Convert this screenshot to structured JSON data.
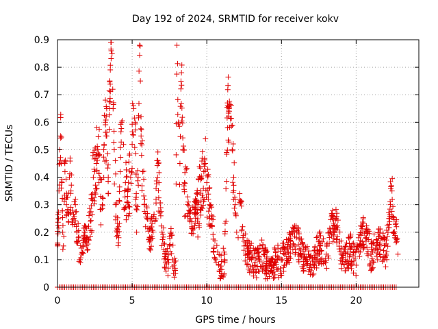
{
  "chart_data": {
    "type": "scatter",
    "title": "Day 192 of 2024, SRMTID for receiver kokv",
    "xlabel": "GPS time / hours",
    "ylabel": "SRMTID / TECUs",
    "xlim": [
      0,
      24.2
    ],
    "ylim": [
      0,
      0.9
    ],
    "xticks": [
      0,
      5,
      10,
      15,
      20
    ],
    "xtick_labels": [
      "0",
      "5",
      "10",
      "15",
      "20"
    ],
    "yticks": [
      0,
      0.1,
      0.2,
      0.3,
      0.4,
      0.5,
      0.6,
      0.7,
      0.8,
      0.9
    ],
    "ytick_labels": [
      "0",
      "0.1",
      "0.2",
      "0.3",
      "0.4",
      "0.5",
      "0.6",
      "0.7",
      "0.8",
      "0.9"
    ],
    "grid": true,
    "marker": "+",
    "color": "#e00000",
    "series": [
      {
        "name": "SRMTID",
        "points": [
          [
            0.0,
            0.15
          ],
          [
            0.1,
            0.35
          ],
          [
            0.15,
            0.5
          ],
          [
            0.2,
            0.55
          ],
          [
            0.25,
            0.45
          ],
          [
            0.3,
            0.38
          ],
          [
            0.35,
            0.2
          ],
          [
            0.4,
            0.15
          ],
          [
            0.45,
            0.32
          ],
          [
            0.5,
            0.42
          ],
          [
            0.6,
            0.3
          ],
          [
            0.7,
            0.27
          ],
          [
            0.8,
            0.4
          ],
          [
            0.9,
            0.35
          ],
          [
            1.0,
            0.28
          ],
          [
            1.1,
            0.25
          ],
          [
            1.2,
            0.3
          ],
          [
            1.3,
            0.2
          ],
          [
            1.4,
            0.18
          ],
          [
            1.5,
            0.1
          ],
          [
            1.6,
            0.12
          ],
          [
            1.7,
            0.15
          ],
          [
            1.8,
            0.2
          ],
          [
            1.9,
            0.22
          ],
          [
            2.0,
            0.18
          ],
          [
            2.2,
            0.24
          ],
          [
            2.4,
            0.4
          ],
          [
            2.5,
            0.42
          ],
          [
            2.6,
            0.45
          ],
          [
            2.7,
            0.5
          ],
          [
            2.8,
            0.48
          ],
          [
            2.9,
            0.33
          ],
          [
            3.0,
            0.3
          ],
          [
            3.1,
            0.5
          ],
          [
            3.2,
            0.6
          ],
          [
            3.3,
            0.55
          ],
          [
            3.4,
            0.4
          ],
          [
            3.5,
            0.75
          ],
          [
            3.6,
            0.86
          ],
          [
            3.7,
            0.72
          ],
          [
            3.8,
            0.5
          ],
          [
            3.9,
            0.3
          ],
          [
            4.0,
            0.2
          ],
          [
            4.1,
            0.18
          ],
          [
            4.2,
            0.42
          ],
          [
            4.3,
            0.6
          ],
          [
            4.5,
            0.35
          ],
          [
            4.7,
            0.33
          ],
          [
            4.9,
            0.4
          ],
          [
            5.0,
            0.52
          ],
          [
            5.1,
            0.65
          ],
          [
            5.2,
            0.6
          ],
          [
            5.3,
            0.2
          ],
          [
            5.4,
            0.4
          ],
          [
            5.5,
            0.88
          ],
          [
            5.55,
            0.75
          ],
          [
            5.6,
            0.55
          ],
          [
            5.7,
            0.42
          ],
          [
            5.8,
            0.3
          ],
          [
            5.9,
            0.22
          ],
          [
            6.0,
            0.25
          ],
          [
            6.2,
            0.18
          ],
          [
            6.4,
            0.25
          ],
          [
            6.6,
            0.32
          ],
          [
            6.7,
            0.4
          ],
          [
            6.8,
            0.38
          ],
          [
            7.0,
            0.2
          ],
          [
            7.2,
            0.12
          ],
          [
            7.4,
            0.1
          ],
          [
            7.5,
            0.15
          ],
          [
            7.6,
            0.2
          ],
          [
            7.7,
            0.1
          ],
          [
            7.8,
            0.08
          ],
          [
            7.9,
            0.05
          ],
          [
            8.0,
            0.88
          ],
          [
            8.1,
            0.6
          ],
          [
            8.2,
            0.45
          ],
          [
            8.3,
            0.78
          ],
          [
            8.4,
            0.5
          ],
          [
            8.5,
            0.38
          ],
          [
            8.7,
            0.3
          ],
          [
            8.9,
            0.25
          ],
          [
            9.0,
            0.22
          ],
          [
            9.2,
            0.27
          ],
          [
            9.4,
            0.3
          ],
          [
            9.6,
            0.35
          ],
          [
            9.8,
            0.42
          ],
          [
            9.9,
            0.45
          ],
          [
            10.0,
            0.38
          ],
          [
            10.1,
            0.32
          ],
          [
            10.2,
            0.3
          ],
          [
            10.3,
            0.25
          ],
          [
            10.6,
            0.1
          ],
          [
            10.8,
            0.08
          ],
          [
            11.0,
            0.05
          ],
          [
            11.2,
            0.12
          ],
          [
            11.4,
            0.66
          ],
          [
            11.5,
            0.64
          ],
          [
            11.7,
            0.5
          ],
          [
            11.8,
            0.4
          ],
          [
            11.9,
            0.3
          ],
          [
            12.0,
            0.2
          ],
          [
            12.1,
            0.18
          ],
          [
            12.2,
            0.32
          ],
          [
            12.4,
            0.22
          ],
          [
            12.5,
            0.15
          ],
          [
            12.8,
            0.12
          ],
          [
            13.0,
            0.1
          ],
          [
            13.2,
            0.08
          ],
          [
            13.5,
            0.1
          ],
          [
            13.8,
            0.12
          ],
          [
            14.0,
            0.08
          ],
          [
            14.3,
            0.06
          ],
          [
            14.6,
            0.09
          ],
          [
            15.0,
            0.1
          ],
          [
            15.3,
            0.12
          ],
          [
            15.6,
            0.15
          ],
          [
            16.0,
            0.18
          ],
          [
            16.3,
            0.12
          ],
          [
            16.6,
            0.1
          ],
          [
            17.0,
            0.06
          ],
          [
            17.3,
            0.12
          ],
          [
            17.6,
            0.15
          ],
          [
            18.0,
            0.12
          ],
          [
            18.3,
            0.2
          ],
          [
            18.6,
            0.25
          ],
          [
            19.0,
            0.12
          ],
          [
            19.3,
            0.1
          ],
          [
            19.6,
            0.14
          ],
          [
            20.0,
            0.08
          ],
          [
            20.2,
            0.15
          ],
          [
            20.4,
            0.2
          ],
          [
            20.7,
            0.18
          ],
          [
            21.0,
            0.12
          ],
          [
            21.3,
            0.14
          ],
          [
            21.6,
            0.16
          ],
          [
            22.0,
            0.12
          ],
          [
            22.2,
            0.25
          ],
          [
            22.3,
            0.3
          ],
          [
            22.4,
            0.35
          ],
          [
            22.5,
            0.2
          ],
          [
            22.7,
            0.22
          ],
          [
            22.8,
            0.12
          ]
        ],
        "zero_band_from": 0.0,
        "zero_band_to": 22.8
      }
    ]
  }
}
